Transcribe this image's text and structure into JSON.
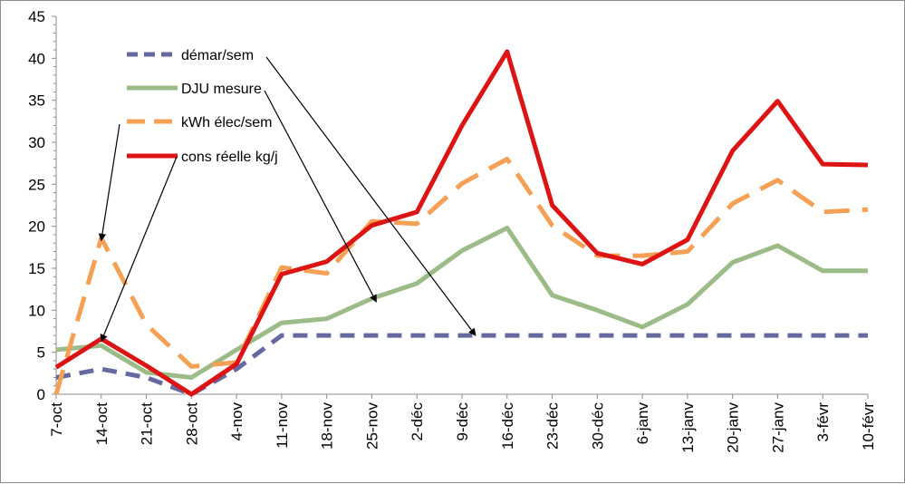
{
  "chart_data": {
    "type": "line",
    "title": "",
    "xlabel": "",
    "ylabel": "",
    "ylim": [
      0,
      45
    ],
    "yticks": [
      0,
      5,
      10,
      15,
      20,
      25,
      30,
      35,
      40,
      45
    ],
    "grid": false,
    "legend_position": "top-left (inside plot)",
    "categories": [
      "7-oct",
      "14-oct",
      "21-oct",
      "28-oct",
      "4-nov",
      "11-nov",
      "18-nov",
      "25-nov",
      "2-déc",
      "9-déc",
      "16-déc",
      "23-déc",
      "30-déc",
      "6-janv",
      "13-janv",
      "20-janv",
      "27-janv",
      "3-févr",
      "10-févr"
    ],
    "series": [
      {
        "name": "démar/sem",
        "color": "#6668a0",
        "style": "dashed",
        "values": [
          2,
          3,
          2,
          0,
          3,
          7,
          7,
          7,
          7,
          7,
          7,
          7,
          7,
          7,
          7,
          7,
          7,
          7,
          7
        ]
      },
      {
        "name": "DJU mesure",
        "color": "#9bbb87",
        "style": "solid",
        "values": [
          5.3,
          5.8,
          2.6,
          2.0,
          5.3,
          8.5,
          9.0,
          11.4,
          13.2,
          17.1,
          19.8,
          11.8,
          10.0,
          8.0,
          10.7,
          15.7,
          17.7,
          14.7,
          14.7
        ]
      },
      {
        "name": "kWh élec/sem",
        "color": "#f4a055",
        "style": "dashed",
        "values": [
          0,
          18.6,
          8.3,
          3.3,
          3.8,
          15.1,
          14.4,
          20.6,
          20.3,
          25.1,
          28.0,
          20.1,
          16.5,
          16.5,
          17.0,
          22.7,
          25.5,
          21.7,
          22.0
        ]
      },
      {
        "name": "cons réelle kg/j",
        "color": "#dc1414",
        "style": "solid",
        "values": [
          3.2,
          6.6,
          3.4,
          0,
          3.6,
          14.3,
          15.8,
          20.1,
          21.7,
          32.0,
          40.8,
          22.5,
          16.8,
          15.5,
          18.4,
          29.0,
          34.9,
          27.4,
          27.3
        ]
      }
    ]
  }
}
